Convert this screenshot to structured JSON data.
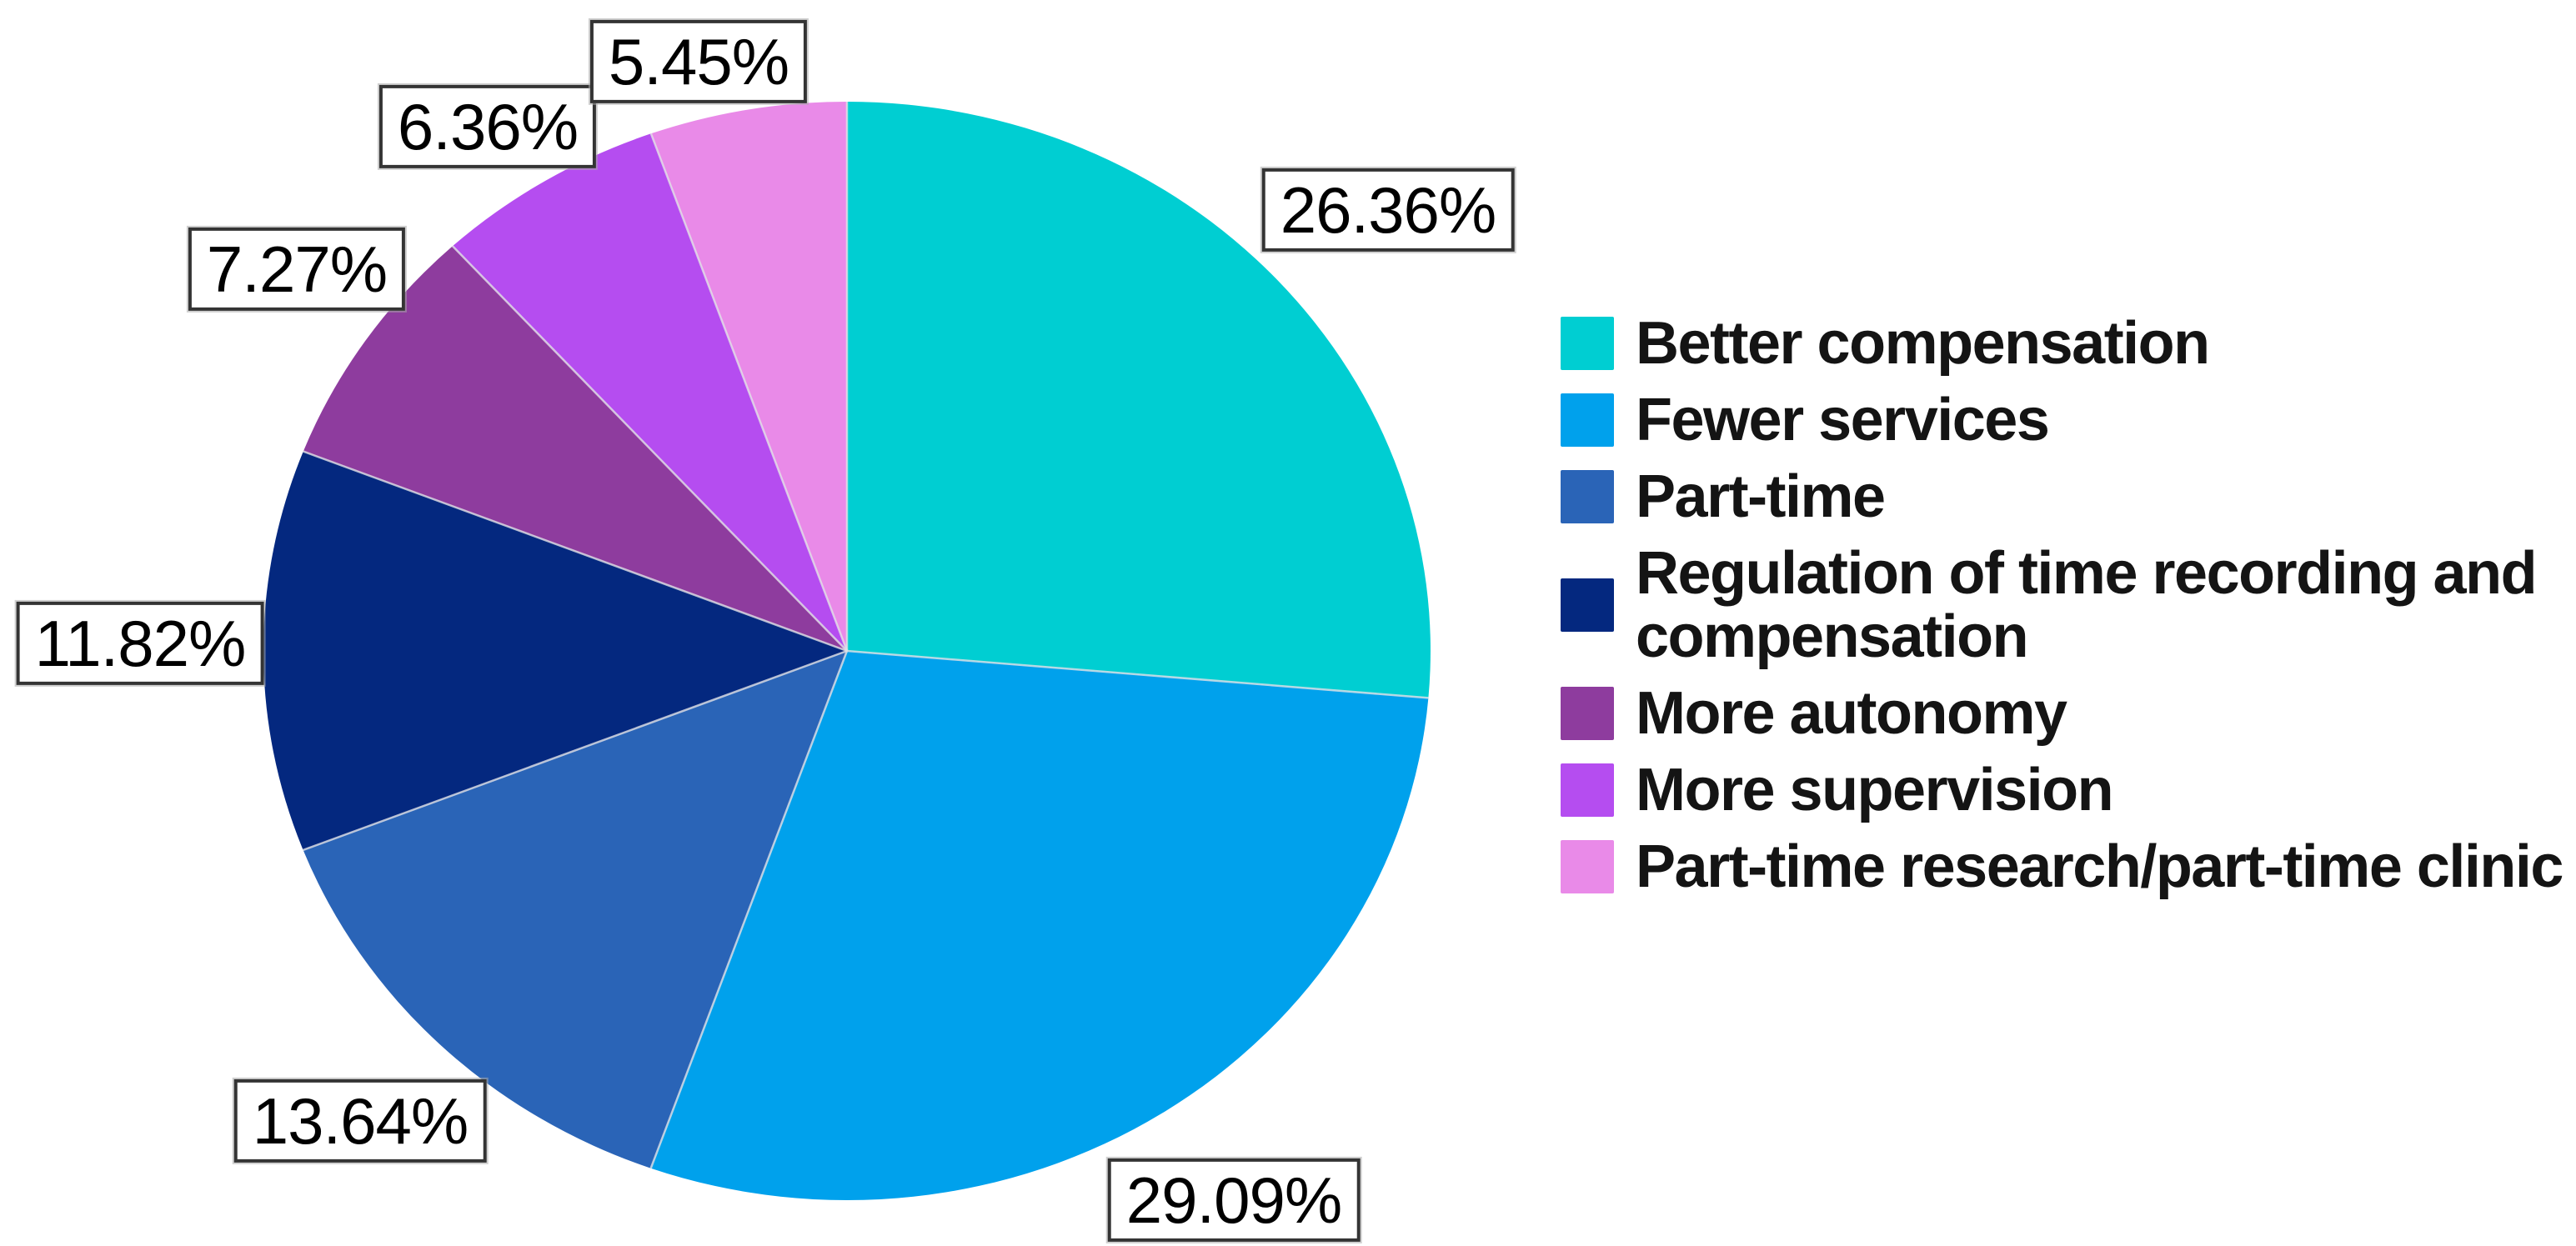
{
  "chart_data": {
    "type": "pie",
    "title": "",
    "legend_position": "right",
    "labels_outside": true,
    "label_box_border": "#343434",
    "background": "#ffffff",
    "start_angle_deg": 0,
    "direction": "clockwise",
    "series": [
      {
        "label": "Better compensation",
        "value": 26.36,
        "display": "26.36%",
        "color": "#00ced2"
      },
      {
        "label": "Fewer services",
        "value": 29.09,
        "display": "29.09%",
        "color": "#00a1ec"
      },
      {
        "label": "Part-time",
        "value": 13.64,
        "display": "13.64%",
        "color": "#2a64b7"
      },
      {
        "label": "Regulation of time recording and compensation",
        "value": 11.82,
        "display": "11.82%",
        "color": "#04287f"
      },
      {
        "label": "More autonomy",
        "value": 7.27,
        "display": "7.27%",
        "color": "#8e3c9e"
      },
      {
        "label": "More supervision",
        "value": 6.36,
        "display": "6.36%",
        "color": "#b54df0"
      },
      {
        "label": "Part-time research/part-time clinic",
        "value": 5.45,
        "display": "5.45%",
        "color": "#e98ae8"
      }
    ]
  }
}
